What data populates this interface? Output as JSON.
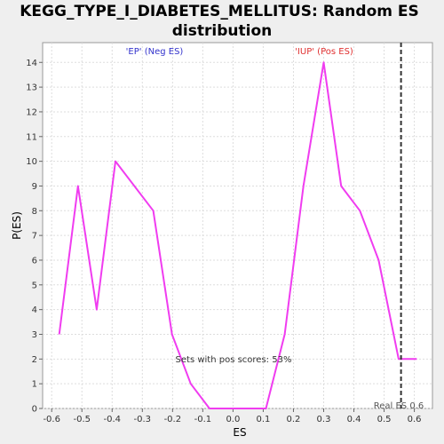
{
  "chart_data": {
    "type": "line",
    "title_line1": "KEGG_TYPE_I_DIABETES_MELLITUS: Random ES",
    "title_line2": "distribution",
    "xlabel": "ES",
    "ylabel": "P(ES)",
    "xlim": [
      -0.63,
      0.66
    ],
    "ylim": [
      0,
      14.8
    ],
    "xticks": [
      "-0.6",
      "-0.5",
      "-0.4",
      "-0.3",
      "-0.2",
      "-0.1",
      "0.0",
      "0.1",
      "0.2",
      "0.3",
      "0.4",
      "0.5",
      "0.6"
    ],
    "yticks": [
      "0",
      "1",
      "2",
      "3",
      "4",
      "5",
      "6",
      "7",
      "8",
      "9",
      "10",
      "11",
      "12",
      "13",
      "14"
    ],
    "grid": true,
    "series": [
      {
        "color": "#f03cf0",
        "x": [
          -0.575,
          -0.513,
          -0.451,
          -0.389,
          -0.264,
          -0.202,
          -0.14,
          -0.078,
          0.047,
          0.109,
          0.171,
          0.233,
          0.3,
          0.358,
          0.42,
          0.482,
          0.548,
          0.608
        ],
        "y": [
          3,
          9,
          4,
          10,
          8,
          3,
          1,
          0,
          0,
          0,
          3,
          9,
          14,
          9,
          8,
          6,
          2,
          2
        ]
      }
    ],
    "real_es": 0.556,
    "real_es_label": "Real ES 0.6",
    "neg_label": "'EP' (Neg ES)",
    "pos_label": "'IUP' (Pos ES)",
    "pos_scores_text": "Sets with pos scores: 53%",
    "colors": {
      "plot_bg": "#ffffff",
      "grid": "#dddddd",
      "neg_label": "#3333cc",
      "pos_label": "#e03030",
      "real_es_line": "#333333"
    }
  }
}
